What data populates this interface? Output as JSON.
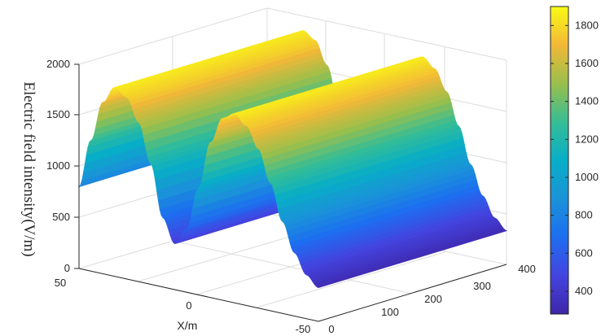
{
  "chart_data": {
    "type": "surface",
    "z_label": "Electric field intensity(V/m)",
    "x_label": "X/m",
    "y_label": "",
    "x_ticks": [
      50,
      0,
      -50
    ],
    "y_ticks": [
      0,
      100,
      200,
      300,
      400
    ],
    "z_ticks": [
      0,
      500,
      1000,
      1500,
      2000
    ],
    "colorbar_ticks": [
      400,
      600,
      800,
      1000,
      1200,
      1400,
      1600,
      1800
    ],
    "x_range": [
      -50,
      50
    ],
    "y_range": [
      0,
      400
    ],
    "z_range": [
      0,
      2000
    ],
    "colorbar_range": [
      280,
      1900
    ],
    "colormap": "parula",
    "grid": true,
    "surface": {
      "x": [
        -50,
        -45,
        -40,
        -35,
        -30,
        -25,
        -20,
        -15,
        -10,
        -5,
        0,
        5,
        10,
        15,
        20,
        25,
        30,
        35,
        40,
        45,
        50
      ],
      "z": [
        330,
        430,
        620,
        900,
        1250,
        1560,
        1760,
        1850,
        1780,
        1520,
        1050,
        620,
        450,
        680,
        1180,
        1560,
        1780,
        1850,
        1680,
        1280,
        800
      ],
      "y_extent": [
        0,
        400
      ],
      "constant_along_y": true
    }
  }
}
